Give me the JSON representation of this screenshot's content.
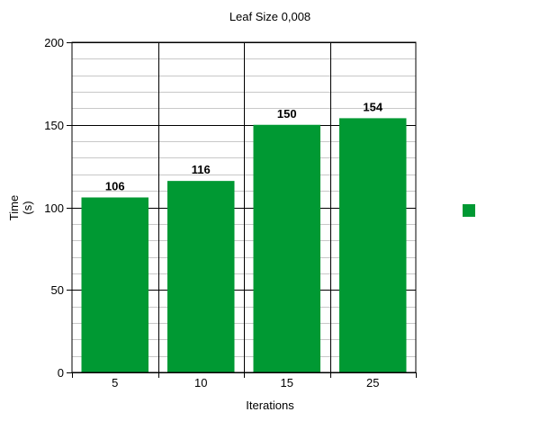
{
  "chart_data": {
    "type": "bar",
    "title": "Leaf Size 0,008",
    "xlabel": "Iterations",
    "ylabel_lines": [
      "Time",
      "(s)"
    ],
    "categories": [
      "5",
      "10",
      "15",
      "25"
    ],
    "values": [
      106,
      116,
      150,
      154
    ],
    "data_labels": [
      "106",
      "116",
      "150",
      "154"
    ],
    "ylim": [
      0,
      200
    ],
    "y_major_ticks": [
      0,
      50,
      100,
      150,
      200
    ],
    "y_tick_labels": [
      "0",
      "50",
      "100",
      "150",
      "200"
    ],
    "y_minor_step": 10,
    "grid": true,
    "bar_color": "#009933",
    "legend_position": "right",
    "legend_label": ""
  }
}
